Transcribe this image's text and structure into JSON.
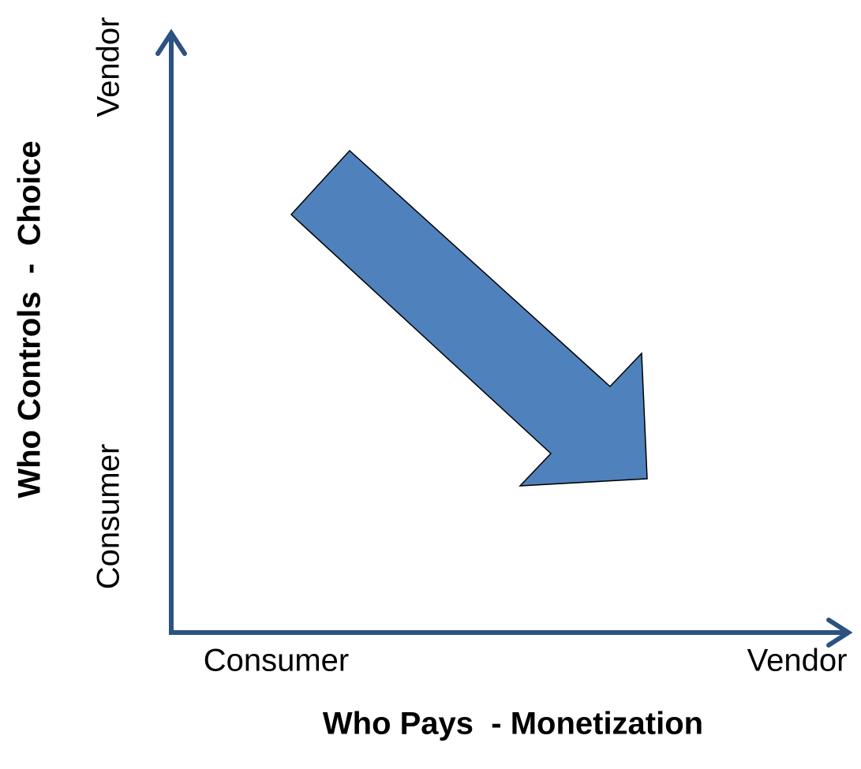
{
  "y_axis": {
    "title": "Who Controls  -  Choice",
    "labels": [
      "Consumer",
      "Vendor"
    ]
  },
  "x_axis": {
    "title": "Who Pays  - Monetization",
    "labels": [
      "Consumer",
      "Vendor"
    ]
  }
}
